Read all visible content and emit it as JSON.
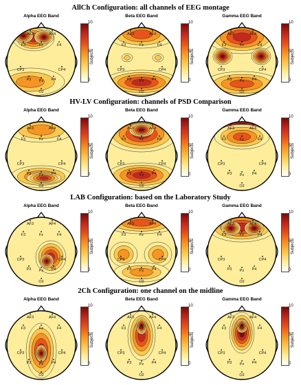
{
  "sections": [
    {
      "title": "AllCh Configuration: all channels of EEG montage",
      "bands": [
        "Alpha EEG Band",
        "Beta EEG Band",
        "Gamma EEG Band"
      ]
    },
    {
      "title": "HV-LV Configuration: channels of PSD Comparison",
      "bands": [
        "Alpha EEG Band",
        "Beta EEG Band",
        "Gamma EEG Band"
      ]
    },
    {
      "title": "LAB Configuration: based on the Laboratory Study",
      "bands": [
        "Alpha EEG Band",
        "Beta EEG Band",
        "Gamma EEG Band"
      ]
    },
    {
      "title": "2Ch Configuration: one channel on the midline",
      "bands": [
        "Alpha EEG Band",
        "Beta EEG Band",
        "Gamma EEG Band"
      ]
    }
  ],
  "colorbar": {
    "label": "Subjects",
    "ticks": [
      "10",
      "5",
      "0"
    ],
    "colors": [
      "#7a0a0a",
      "#c0281c",
      "#e8501a",
      "#f59222",
      "#fcc54a",
      "#feed9a",
      "#ffffff"
    ]
  },
  "electrodes": {
    "AF3": "AF3",
    "AF4": "AF4",
    "F3": "F3",
    "Fz": "Fz",
    "F4": "F4",
    "CP3": "CP3",
    "CP4": "CP4",
    "P3": "P3",
    "Pz": "Pz",
    "P4": "P4",
    "O2": "O2"
  }
}
